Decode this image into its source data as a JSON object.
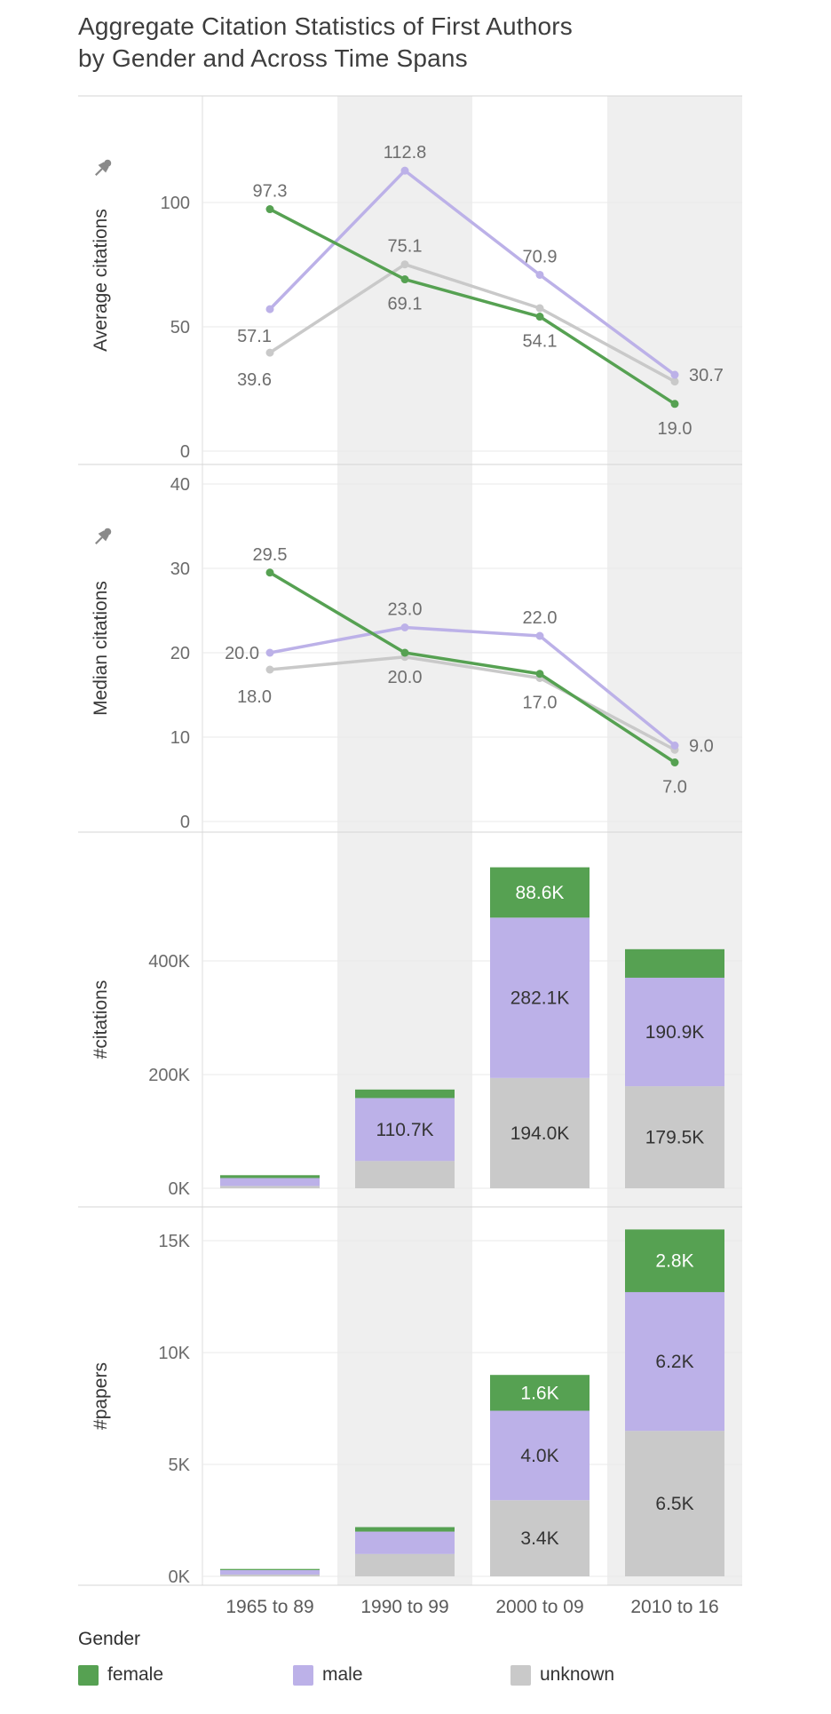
{
  "title": {
    "line1": "Aggregate Citation Statistics of First Authors",
    "line2": "by Gender and Across Time Spans"
  },
  "categories": [
    "1965 to 89",
    "1990 to 99",
    "2000 to 09",
    "2010 to 16"
  ],
  "legend": {
    "title": "Gender",
    "items": [
      {
        "label": "female",
        "color": "#56a152"
      },
      {
        "label": "male",
        "color": "#bcb1e8"
      },
      {
        "label": "unknown",
        "color": "#c9c9c9"
      }
    ]
  },
  "chart_data": [
    {
      "type": "line",
      "ylabel": "Average citations",
      "ylim": [
        0,
        140
      ],
      "yticks": [
        {
          "v": 0,
          "label": "0"
        },
        {
          "v": 50,
          "label": "50"
        },
        {
          "v": 100,
          "label": "100"
        }
      ],
      "categories": [
        "1965 to 89",
        "1990 to 99",
        "2000 to 09",
        "2010 to 16"
      ],
      "series": [
        {
          "name": "female",
          "values": [
            97.3,
            69.1,
            54.1,
            19.0
          ]
        },
        {
          "name": "male",
          "values": [
            57.1,
            112.8,
            70.9,
            30.7
          ]
        },
        {
          "name": "unknown",
          "values": [
            39.6,
            75.1,
            57.5,
            28.0
          ]
        }
      ],
      "point_labels": [
        {
          "series": "female",
          "index": 0,
          "text": "97.3",
          "pos": "above"
        },
        {
          "series": "female",
          "index": 1,
          "text": "69.1",
          "pos": "below"
        },
        {
          "series": "female",
          "index": 2,
          "text": "54.1",
          "pos": "below"
        },
        {
          "series": "female",
          "index": 3,
          "text": "19.0",
          "pos": "below"
        },
        {
          "series": "male",
          "index": 0,
          "text": "57.1",
          "pos": "left-below"
        },
        {
          "series": "male",
          "index": 1,
          "text": "112.8",
          "pos": "above"
        },
        {
          "series": "male",
          "index": 2,
          "text": "70.9",
          "pos": "above"
        },
        {
          "series": "male",
          "index": 3,
          "text": "30.7",
          "pos": "right"
        },
        {
          "series": "unknown",
          "index": 0,
          "text": "39.6",
          "pos": "left-below"
        },
        {
          "series": "unknown",
          "index": 1,
          "text": "75.1",
          "pos": "above"
        }
      ]
    },
    {
      "type": "line",
      "ylabel": "Median citations",
      "ylim": [
        0,
        42
      ],
      "yticks": [
        {
          "v": 0,
          "label": "0"
        },
        {
          "v": 10,
          "label": "10"
        },
        {
          "v": 20,
          "label": "20"
        },
        {
          "v": 30,
          "label": "30"
        },
        {
          "v": 40,
          "label": "40"
        }
      ],
      "categories": [
        "1965 to 89",
        "1990 to 99",
        "2000 to 09",
        "2010 to 16"
      ],
      "series": [
        {
          "name": "female",
          "values": [
            29.5,
            20.0,
            17.5,
            7.0
          ]
        },
        {
          "name": "male",
          "values": [
            20.0,
            23.0,
            22.0,
            9.0
          ]
        },
        {
          "name": "unknown",
          "values": [
            18.0,
            19.5,
            17.0,
            8.5
          ]
        }
      ],
      "point_labels": [
        {
          "series": "female",
          "index": 0,
          "text": "29.5",
          "pos": "above"
        },
        {
          "series": "female",
          "index": 1,
          "text": "20.0",
          "pos": "below"
        },
        {
          "series": "female",
          "index": 3,
          "text": "7.0",
          "pos": "below"
        },
        {
          "series": "male",
          "index": 0,
          "text": "20.0",
          "pos": "left"
        },
        {
          "series": "male",
          "index": 1,
          "text": "23.0",
          "pos": "above"
        },
        {
          "series": "male",
          "index": 2,
          "text": "22.0",
          "pos": "above"
        },
        {
          "series": "male",
          "index": 3,
          "text": "9.0",
          "pos": "right"
        },
        {
          "series": "unknown",
          "index": 0,
          "text": "18.0",
          "pos": "left-below"
        },
        {
          "series": "unknown",
          "index": 2,
          "text": "17.0",
          "pos": "below"
        }
      ]
    },
    {
      "type": "stacked-bar",
      "ylabel": "#citations",
      "unit": "K",
      "ylim": [
        0,
        620
      ],
      "yticks": [
        {
          "v": 0,
          "label": "0K"
        },
        {
          "v": 200,
          "label": "200K"
        },
        {
          "v": 400,
          "label": "400K"
        }
      ],
      "categories": [
        "1965 to 89",
        "1990 to 99",
        "2000 to 09",
        "2010 to 16"
      ],
      "stack_order": [
        "unknown",
        "male",
        "female"
      ],
      "series": [
        {
          "name": "female",
          "values": [
            5,
            15,
            88.6,
            50.2
          ]
        },
        {
          "name": "male",
          "values": [
            14,
            110.7,
            282.1,
            190.9
          ]
        },
        {
          "name": "unknown",
          "values": [
            4,
            48,
            194.0,
            179.5
          ]
        }
      ],
      "bar_labels": [
        {
          "series": "male",
          "index": 1,
          "text": "110.7K"
        },
        {
          "series": "female",
          "index": 2,
          "text": "88.6K"
        },
        {
          "series": "male",
          "index": 2,
          "text": "282.1K"
        },
        {
          "series": "unknown",
          "index": 2,
          "text": "194.0K"
        },
        {
          "series": "male",
          "index": 3,
          "text": "190.9K"
        },
        {
          "series": "unknown",
          "index": 3,
          "text": "179.5K"
        }
      ]
    },
    {
      "type": "stacked-bar",
      "ylabel": "#papers",
      "unit": "K",
      "ylim": [
        0,
        16.5
      ],
      "yticks": [
        {
          "v": 0,
          "label": "0K"
        },
        {
          "v": 5,
          "label": "5K"
        },
        {
          "v": 10,
          "label": "10K"
        },
        {
          "v": 15,
          "label": "15K"
        }
      ],
      "categories": [
        "1965 to 89",
        "1990 to 99",
        "2000 to 09",
        "2010 to 16"
      ],
      "stack_order": [
        "unknown",
        "male",
        "female"
      ],
      "series": [
        {
          "name": "female",
          "values": [
            0.05,
            0.2,
            1.6,
            2.8
          ]
        },
        {
          "name": "male",
          "values": [
            0.2,
            1.0,
            4.0,
            6.2
          ]
        },
        {
          "name": "unknown",
          "values": [
            0.08,
            1.0,
            3.4,
            6.5
          ]
        }
      ],
      "bar_labels": [
        {
          "series": "female",
          "index": 2,
          "text": "1.6K"
        },
        {
          "series": "male",
          "index": 2,
          "text": "4.0K"
        },
        {
          "series": "unknown",
          "index": 2,
          "text": "3.4K"
        },
        {
          "series": "female",
          "index": 3,
          "text": "2.8K"
        },
        {
          "series": "male",
          "index": 3,
          "text": "6.2K"
        },
        {
          "series": "unknown",
          "index": 3,
          "text": "6.5K"
        }
      ]
    }
  ]
}
